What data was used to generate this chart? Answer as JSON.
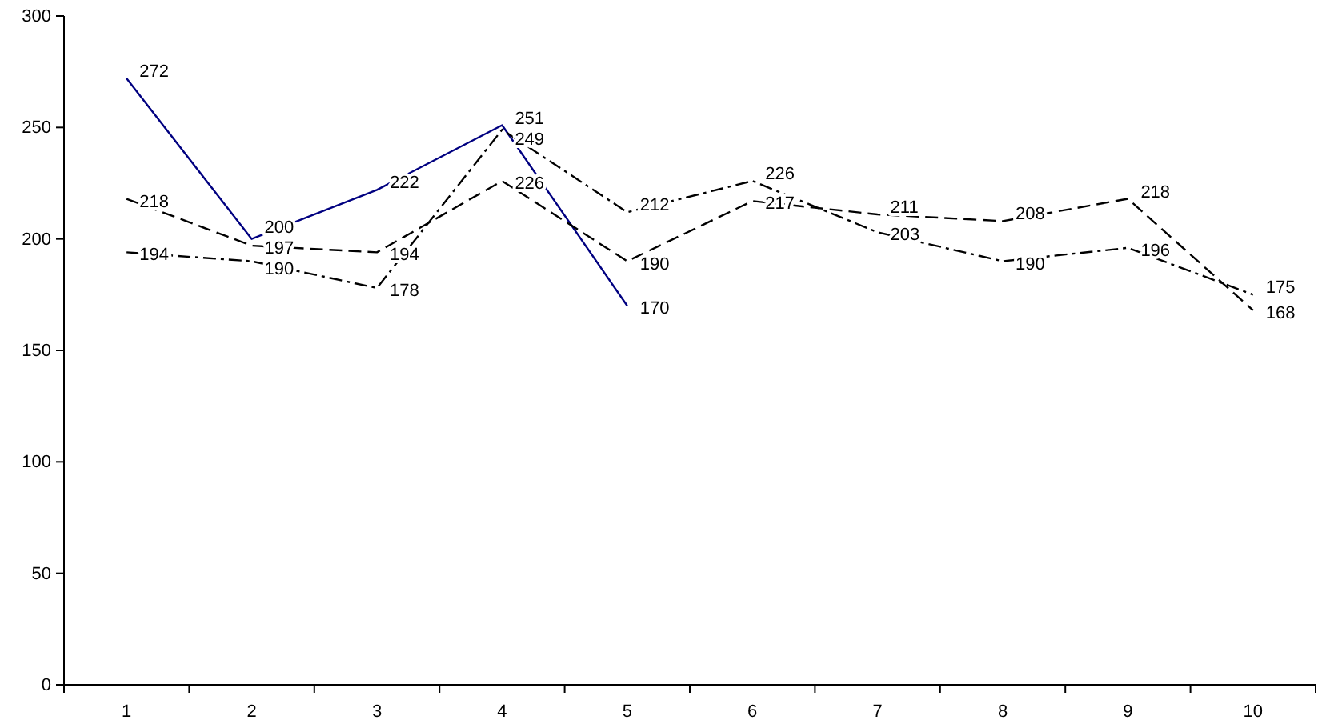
{
  "chart_data": {
    "type": "line",
    "categories": [
      "1",
      "2",
      "3",
      "4",
      "5",
      "6",
      "7",
      "8",
      "9",
      "10"
    ],
    "series": [
      {
        "color": "#000080",
        "line_style": "solid",
        "values": [
          272,
          200,
          222,
          251,
          170,
          null,
          null,
          null,
          null,
          null
        ]
      },
      {
        "color": "#000000",
        "line_style": "dashed",
        "values": [
          218,
          197,
          194,
          226,
          190,
          217,
          211,
          208,
          218,
          168
        ]
      },
      {
        "color": "#000000",
        "line_style": "dashdot",
        "values": [
          194,
          190,
          178,
          249,
          212,
          226,
          203,
          190,
          196,
          175
        ]
      }
    ],
    "ylim": [
      0,
      300
    ],
    "yticks": [
      0,
      50,
      100,
      150,
      200,
      250,
      300
    ],
    "data_labels": true,
    "grid": false,
    "legend": false,
    "marker": "none"
  }
}
